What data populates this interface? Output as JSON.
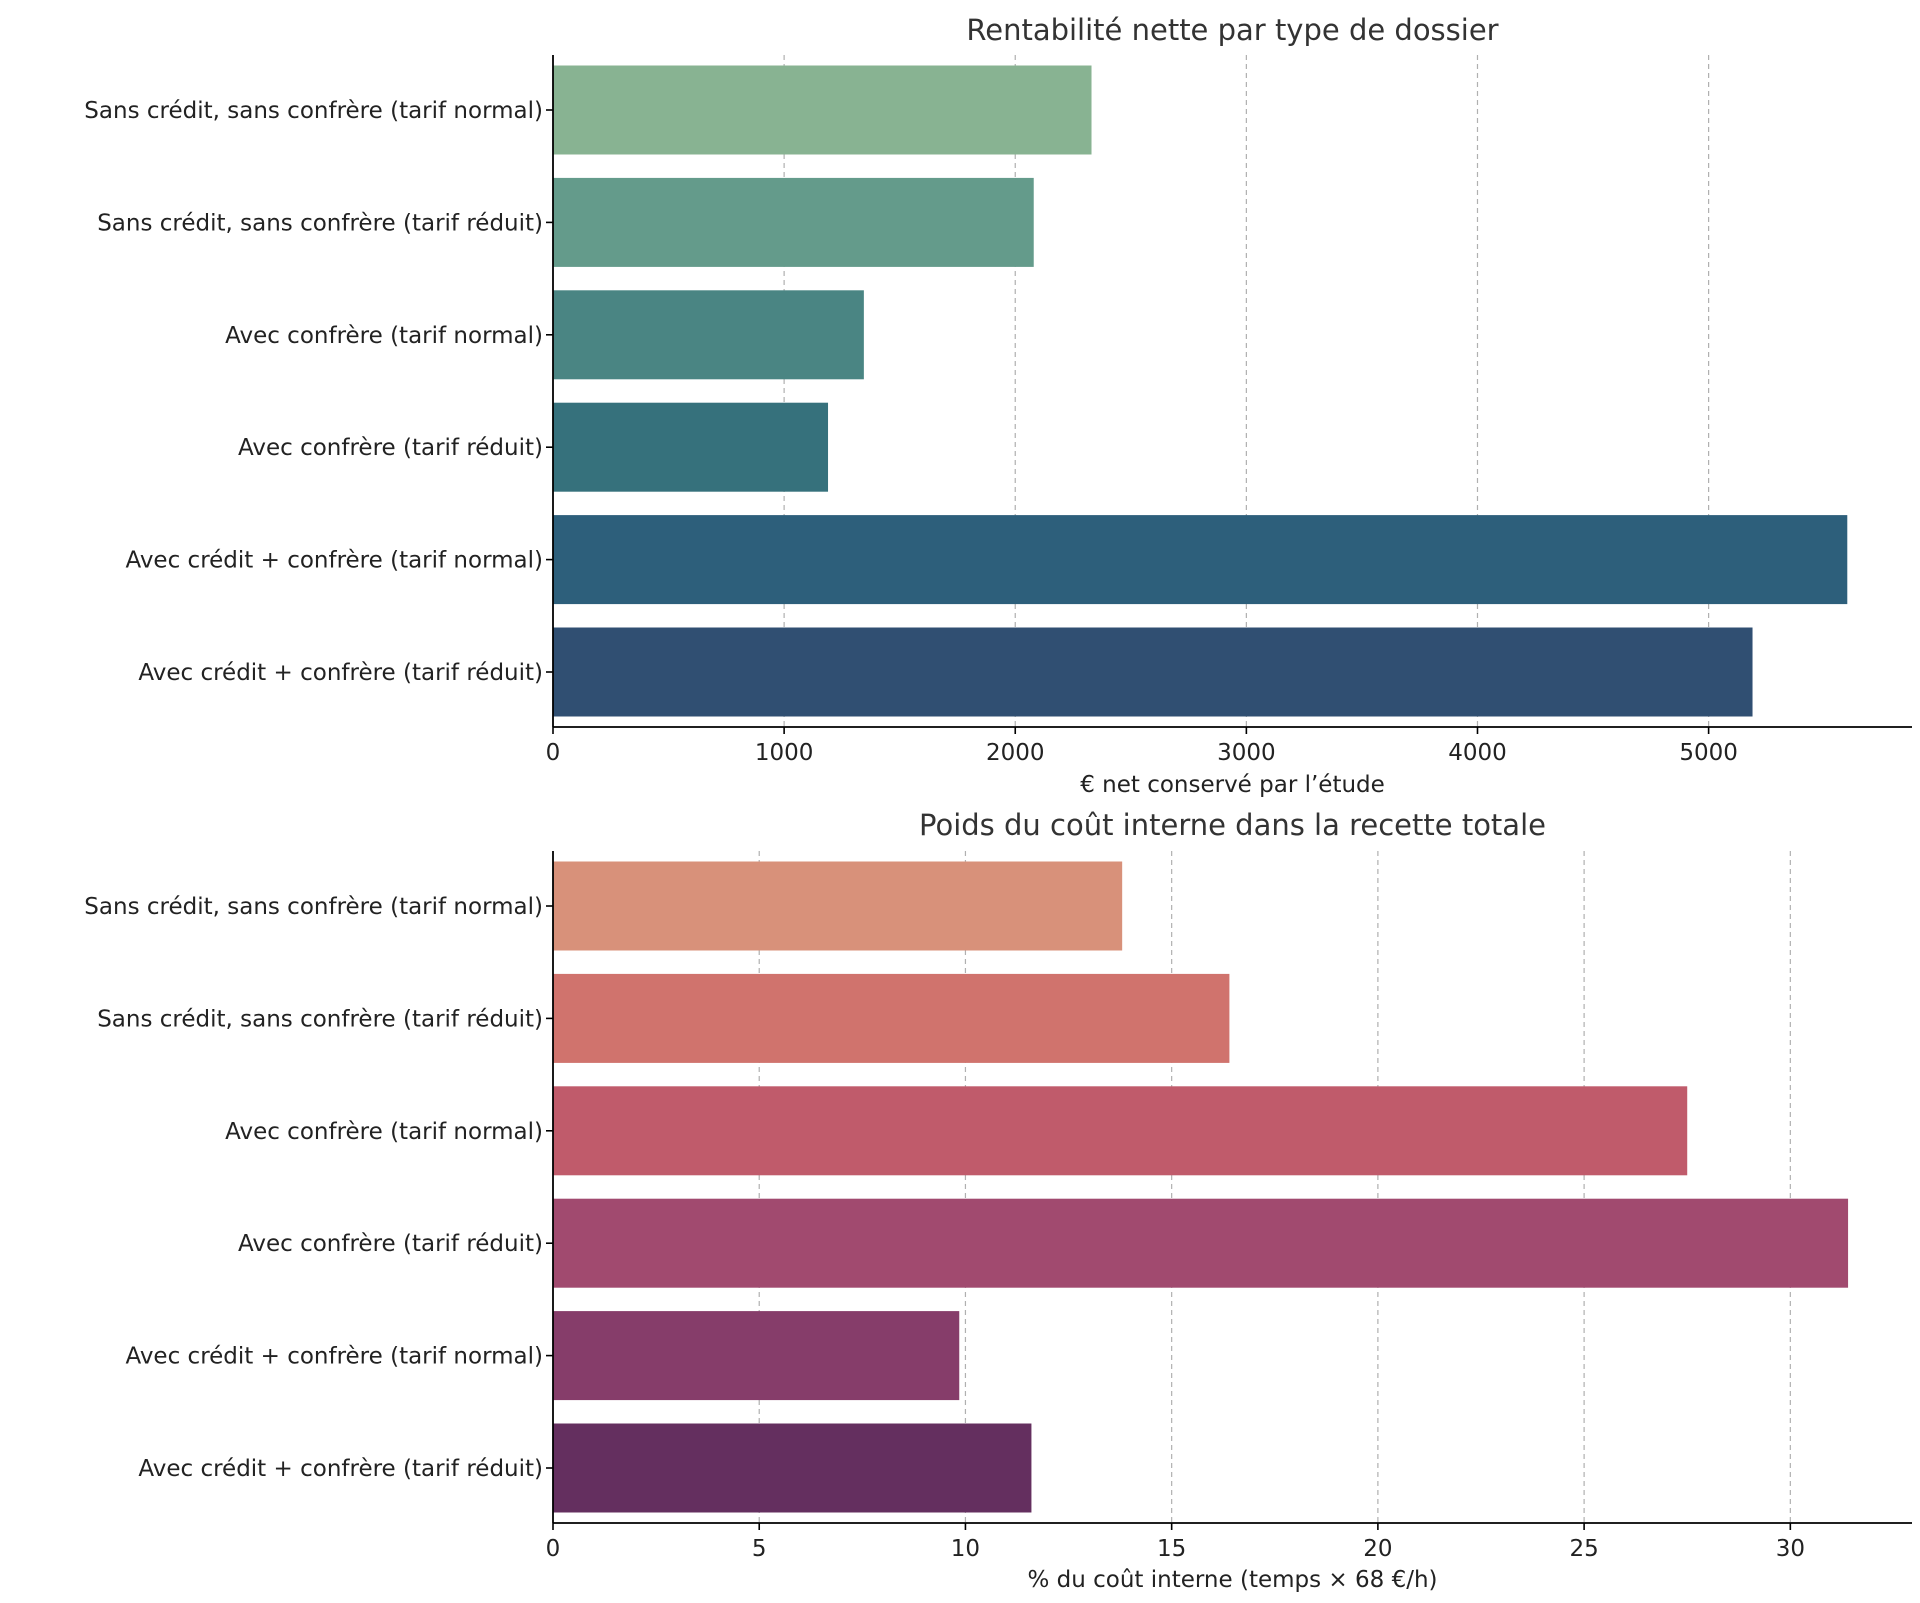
{
  "chart_data": [
    {
      "type": "bar",
      "orientation": "horizontal",
      "title": "Rentabilité nette par type de dossier",
      "xlabel": "€ net conservé par l’étude",
      "ylabel": "",
      "categories": [
        "Sans crédit, sans confrère (tarif normal)",
        "Sans crédit, sans confrère (tarif réduit)",
        "Avec confrère (tarif normal)",
        "Avec confrère (tarif réduit)",
        "Avec crédit + confrère (tarif normal)",
        "Avec crédit + confrère (tarif réduit)"
      ],
      "values": [
        2330,
        2080,
        1345,
        1190,
        5600,
        5190
      ],
      "xlim": [
        0,
        5880
      ],
      "xticks": [
        0,
        1000,
        2000,
        3000,
        4000,
        5000
      ],
      "xtick_labels": [
        "0",
        "1000",
        "2000",
        "3000",
        "4000",
        "5000"
      ],
      "colors": [
        "#88b392",
        "#649b8b",
        "#4a8583",
        "#36717c",
        "#2d5f7b",
        "#304f72"
      ],
      "grid": "x",
      "legend": "none"
    },
    {
      "type": "bar",
      "orientation": "horizontal",
      "title": "Poids du coût interne dans la recette totale",
      "xlabel": "% du coût interne (temps × 68 €/h)",
      "ylabel": "",
      "categories": [
        "Sans crédit, sans confrère (tarif normal)",
        "Sans crédit, sans confrère (tarif réduit)",
        "Avec confrère (tarif normal)",
        "Avec confrère (tarif réduit)",
        "Avec crédit + confrère (tarif normal)",
        "Avec crédit + confrère (tarif réduit)"
      ],
      "values": [
        13.8,
        16.4,
        27.5,
        31.4,
        9.85,
        11.6
      ],
      "xlim": [
        0,
        32.95
      ],
      "xticks": [
        0,
        5,
        10,
        15,
        20,
        25,
        30
      ],
      "xtick_labels": [
        "0",
        "5",
        "10",
        "15",
        "20",
        "25",
        "30"
      ],
      "colors": [
        "#d8917a",
        "#d0736d",
        "#c05b6b",
        "#a14a6f",
        "#863d6a",
        "#642f5f"
      ],
      "grid": "x",
      "legend": "none"
    }
  ]
}
